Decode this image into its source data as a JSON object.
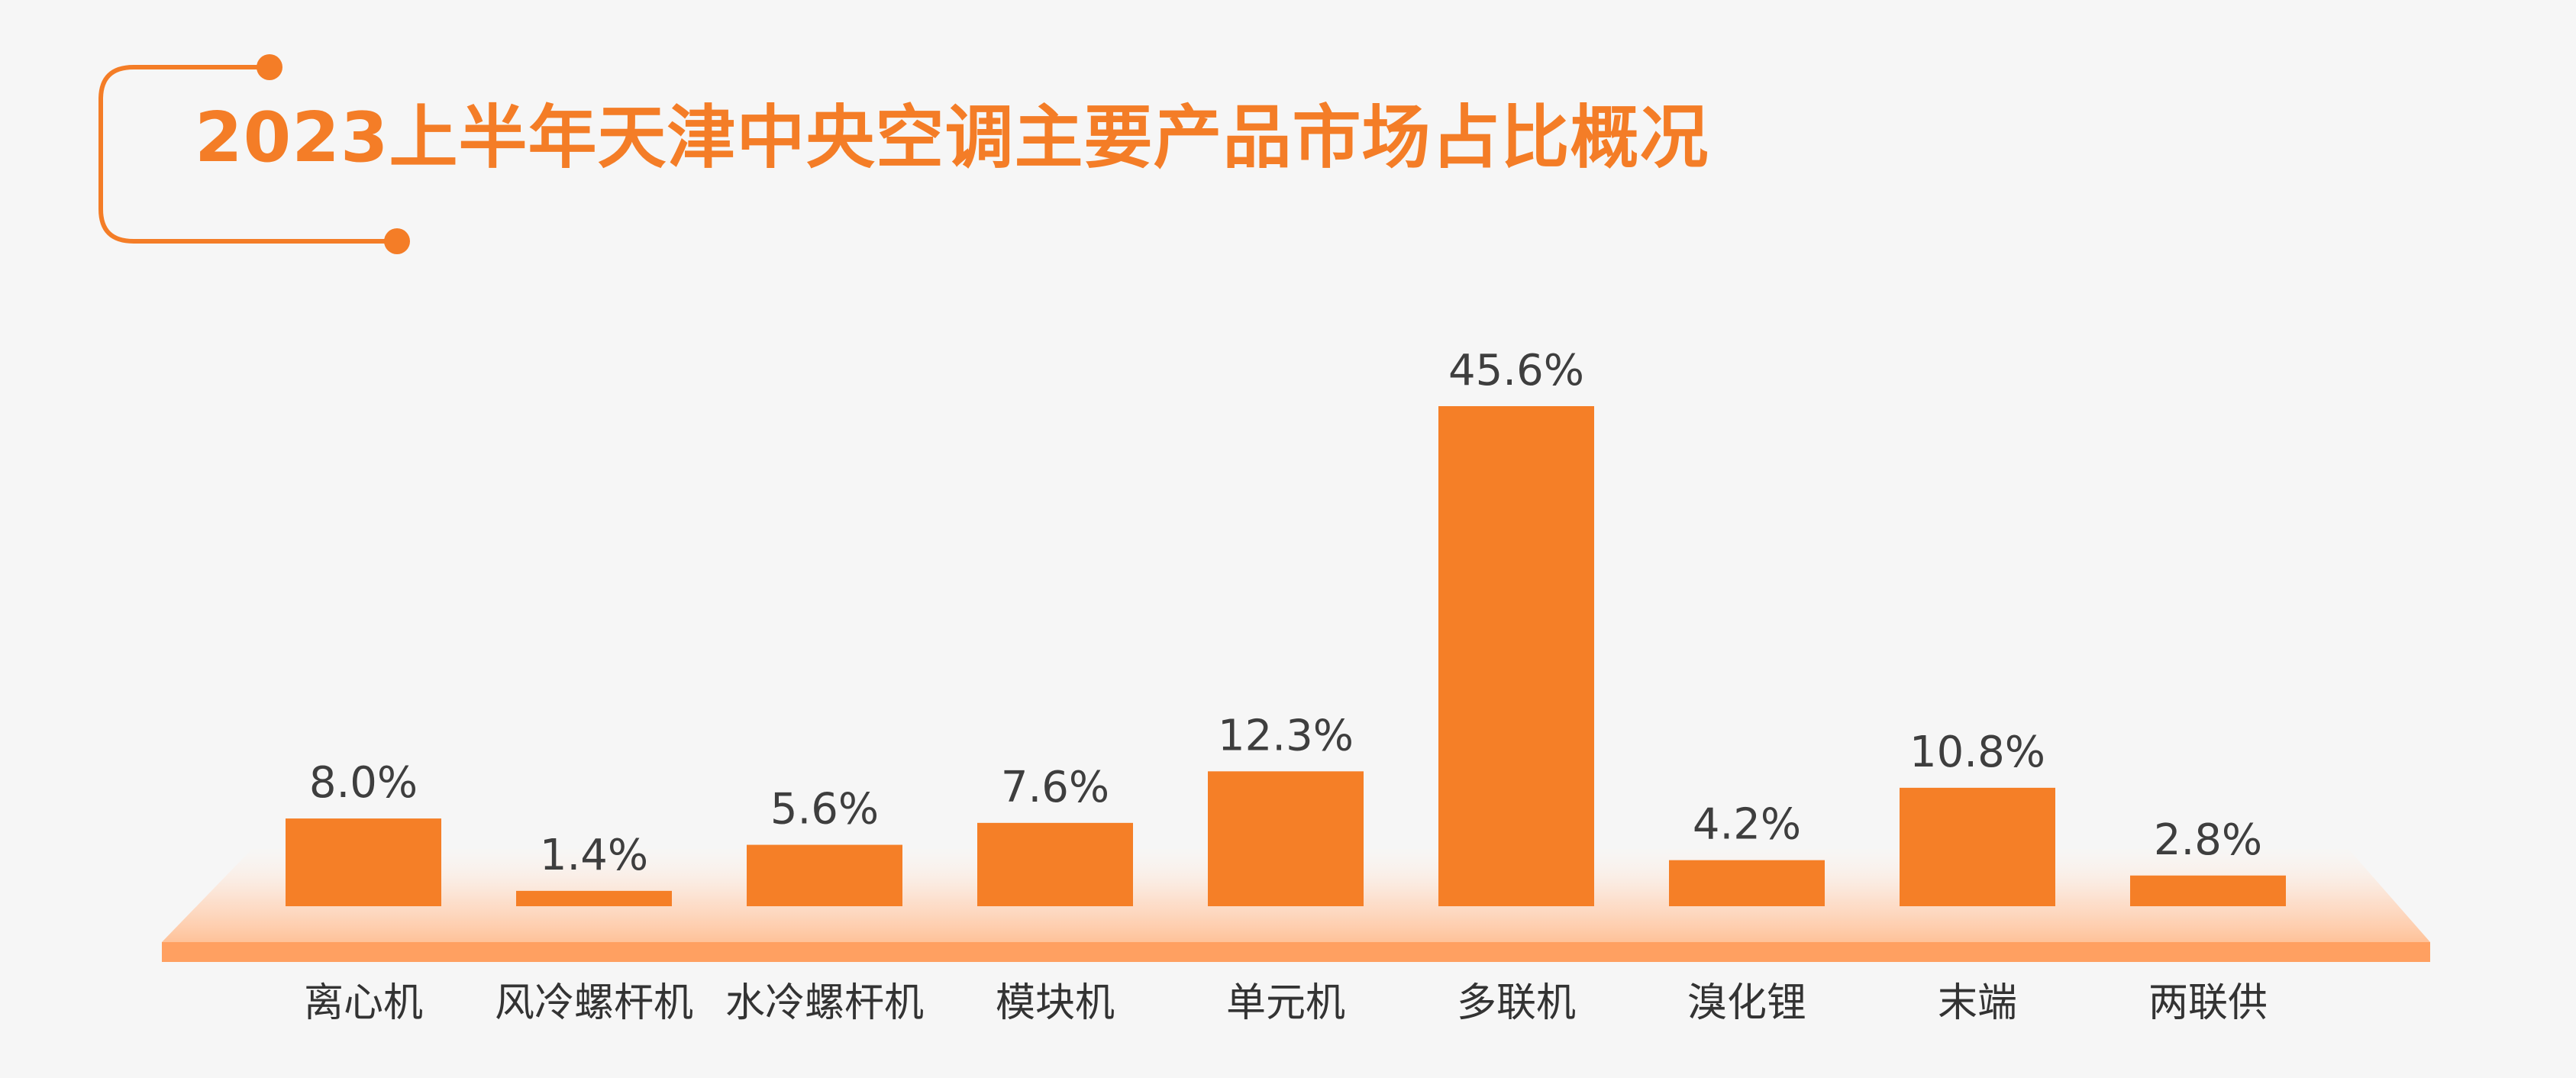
{
  "chart_data": {
    "type": "bar",
    "title": "2023上半年天津中央空调主要产品市场占比概况",
    "categories": [
      "离心机",
      "风冷螺杆机",
      "水冷螺杆机",
      "模块机",
      "单元机",
      "多联机",
      "溴化锂",
      "末端",
      "两联供"
    ],
    "values": [
      8.0,
      1.4,
      5.6,
      7.6,
      12.3,
      45.6,
      4.2,
      10.8,
      2.8
    ],
    "value_labels": [
      "8.0%",
      "1.4%",
      "5.6%",
      "7.6%",
      "12.3%",
      "45.6%",
      "4.2%",
      "10.8%",
      "2.8%"
    ],
    "xlabel": "",
    "ylabel": "",
    "ylim": [
      0,
      45.6
    ],
    "grid": false,
    "legend": "none"
  },
  "colors": {
    "background": "#f6f6f6",
    "accent": "#f47d27",
    "bar": "#f57f27",
    "platform": "#ffa061",
    "value_text": "#3e3e3e",
    "category_text": "#333333"
  }
}
